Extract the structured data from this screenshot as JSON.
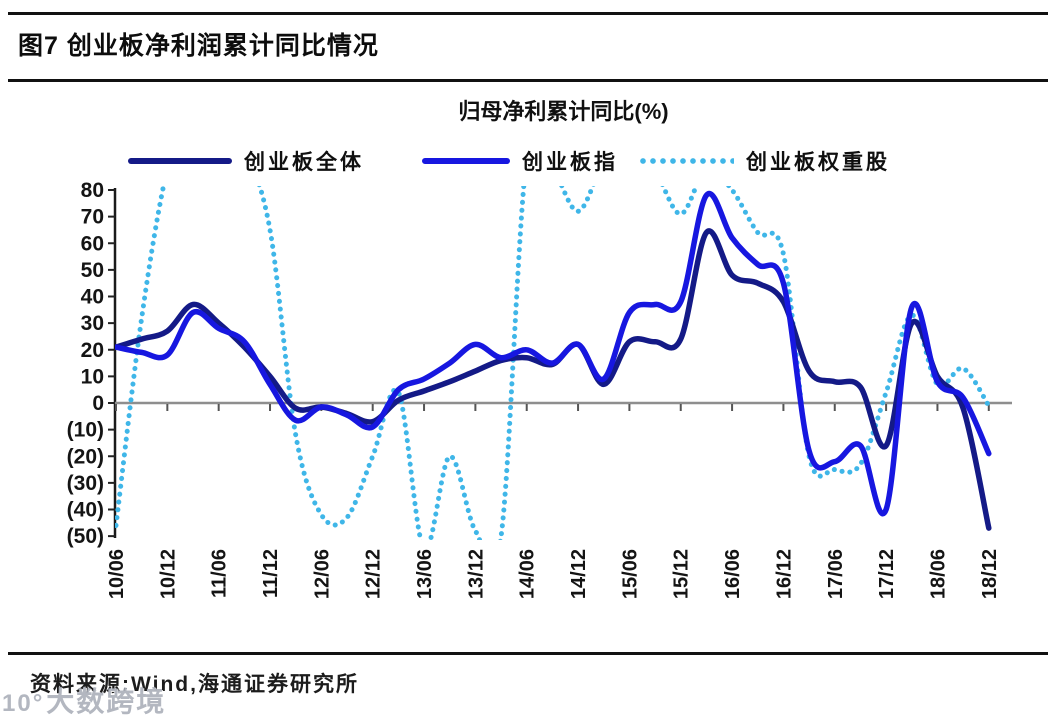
{
  "header": {
    "title": "图7  创业板净利润累计同比情况"
  },
  "chart_data": {
    "type": "line",
    "title": "归母净利累计同比(%)",
    "legend_position": "top",
    "grid": false,
    "zero_line": true,
    "ylim": [
      -50,
      80
    ],
    "ytick_step": 10,
    "ytick_labels": [
      "80",
      "70",
      "60",
      "50",
      "40",
      "30",
      "20",
      "10",
      "0",
      "(10)",
      "(20)",
      "(30)",
      "(40)",
      "(50)"
    ],
    "x_axis_labels": [
      "10/06",
      "10/12",
      "11/06",
      "11/12",
      "12/06",
      "12/12",
      "13/06",
      "13/12",
      "14/06",
      "14/12",
      "15/06",
      "15/12",
      "16/06",
      "16/12",
      "17/06",
      "17/12",
      "18/06",
      "18/12"
    ],
    "x_quarters": [
      "10/06",
      "10/09",
      "10/12",
      "11/03",
      "11/06",
      "11/09",
      "11/12",
      "12/03",
      "12/06",
      "12/09",
      "12/12",
      "13/03",
      "13/06",
      "13/09",
      "13/12",
      "14/03",
      "14/06",
      "14/09",
      "14/12",
      "15/03",
      "15/06",
      "15/09",
      "15/12",
      "16/03",
      "16/06",
      "16/09",
      "16/12",
      "17/03",
      "17/06",
      "17/09",
      "17/12",
      "18/03",
      "18/06",
      "18/09",
      "18/12"
    ],
    "series": [
      {
        "name": "创业板全体",
        "color": "#141a87",
        "style": "solid",
        "values": [
          21,
          24,
          27,
          37,
          30,
          21,
          10,
          -2,
          -1.5,
          -4,
          -7,
          1,
          4.5,
          8,
          12,
          16,
          17,
          14.5,
          22,
          7,
          23,
          23,
          24,
          64,
          48,
          45,
          38,
          12,
          8,
          6,
          -16,
          30,
          10,
          -2,
          -47
        ]
      },
      {
        "name": "创业板指",
        "color": "#1717e0",
        "style": "solid",
        "values": [
          21,
          19,
          18,
          34,
          28,
          23,
          7,
          -6.5,
          -1.5,
          -4.5,
          -9,
          5,
          9,
          15,
          22,
          17,
          20,
          15,
          22,
          9,
          34,
          37,
          38,
          78,
          62,
          52,
          45,
          -18,
          -22,
          -16,
          -40,
          36,
          8,
          2,
          -19
        ]
      },
      {
        "name": "创业板权重股",
        "color": "#3fb6e8",
        "style": "dotted",
        "values": [
          -46,
          32,
          88,
          115,
          105,
          95,
          65,
          -12,
          -42,
          -43,
          -20,
          4,
          -55,
          -20,
          -48,
          -50,
          92,
          88,
          72,
          90,
          95,
          87,
          71,
          88,
          80,
          64,
          56,
          -20,
          -25,
          -23,
          4,
          33,
          7,
          13,
          -1
        ]
      }
    ]
  },
  "footer": {
    "source": "资料来源:Wind,海通证券研究所"
  },
  "watermark": {
    "logo": "10°",
    "text": "大数跨境"
  }
}
